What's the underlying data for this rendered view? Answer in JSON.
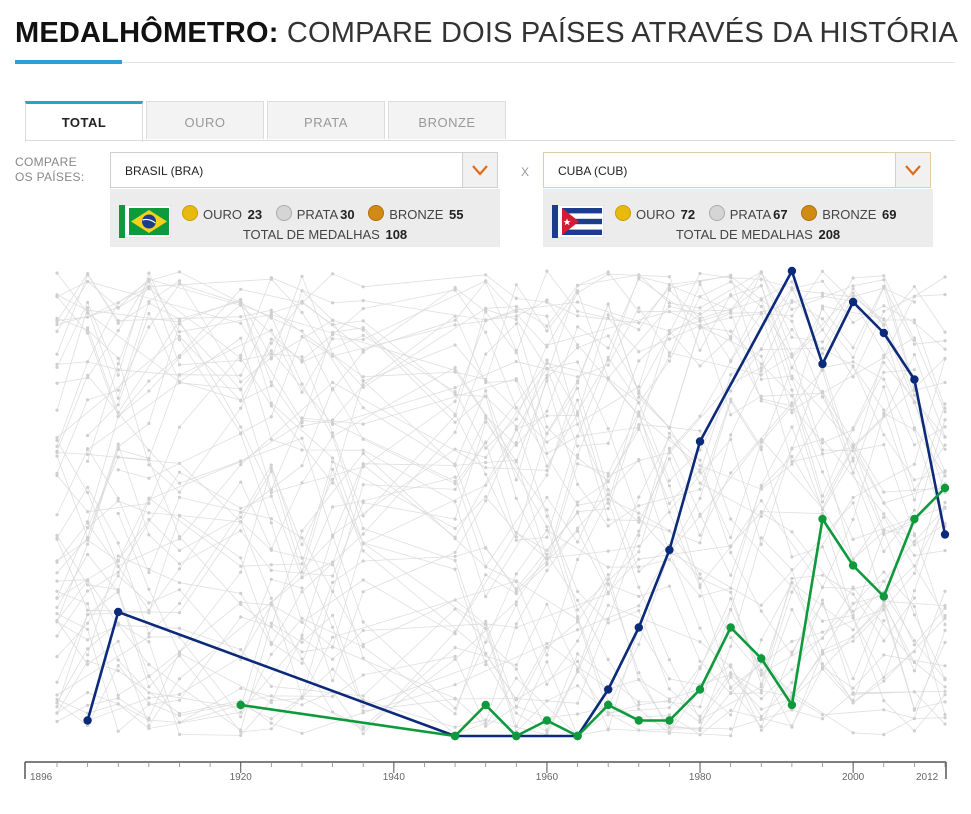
{
  "header": {
    "title_bold": "MEDALHÔMETRO:",
    "title_rest": "COMPARE DOIS PAÍSES ATRAVÉS DA HISTÓRIA"
  },
  "tabs": [
    {
      "label": "TOTAL",
      "active": true
    },
    {
      "label": "OURO",
      "active": false
    },
    {
      "label": "PRATA",
      "active": false
    },
    {
      "label": "BRONZE",
      "active": false
    }
  ],
  "compare": {
    "label_line1": "COMPARE",
    "label_line2": "OS PAÍSES:",
    "separator": "X"
  },
  "country_left": {
    "select_value": "BRASIL (BRA)",
    "flag_icon": "brazil-flag-icon",
    "gold_label": "OURO",
    "gold": "23",
    "silver_label": "PRATA",
    "silver": "30",
    "bronze_label": "BRONZE",
    "bronze": "55",
    "total_label": "TOTAL DE MEDALHAS",
    "total": "108",
    "color": "#0e9a3c"
  },
  "country_right": {
    "select_value": "CUBA (CUB)",
    "flag_icon": "cuba-flag-icon",
    "gold_label": "OURO",
    "gold": "72",
    "silver_label": "PRATA",
    "silver": "67",
    "bronze_label": "BRONZE",
    "bronze": "69",
    "total_label": "TOTAL DE MEDALHAS",
    "total": "208",
    "color": "#0c2a7a"
  },
  "colors": {
    "accent": "#2aa0d6",
    "arrow": "#e06a1a",
    "background_lines": "#d9d9d9"
  },
  "chart_data": {
    "type": "line",
    "x_ticks": [
      "1896",
      "1920",
      "1940",
      "1960",
      "1980",
      "2000",
      "2012"
    ],
    "xlim": [
      1892,
      2015
    ],
    "ylim": [
      0,
      31
    ],
    "grid": false,
    "series": [
      {
        "name": "CUBA (CUB)",
        "color": "#0c2a7a",
        "x": [
          1900,
          1904,
          1948,
          1956,
          1964,
          1968,
          1972,
          1976,
          1980,
          1992,
          1996,
          2000,
          2004,
          2008,
          2012
        ],
        "y": [
          1,
          8,
          0,
          0,
          0,
          3,
          7,
          12,
          19,
          30,
          24,
          28,
          26,
          23,
          13
        ]
      },
      {
        "name": "BRASIL (BRA)",
        "color": "#0e9a3c",
        "x": [
          1920,
          1948,
          1952,
          1956,
          1960,
          1964,
          1968,
          1972,
          1976,
          1980,
          1984,
          1988,
          1992,
          1996,
          2000,
          2004,
          2008,
          2012
        ],
        "y": [
          2,
          0,
          2,
          0,
          1,
          0,
          2,
          1,
          1,
          3,
          7,
          5,
          2,
          14,
          11,
          9,
          14,
          16
        ]
      }
    ]
  }
}
